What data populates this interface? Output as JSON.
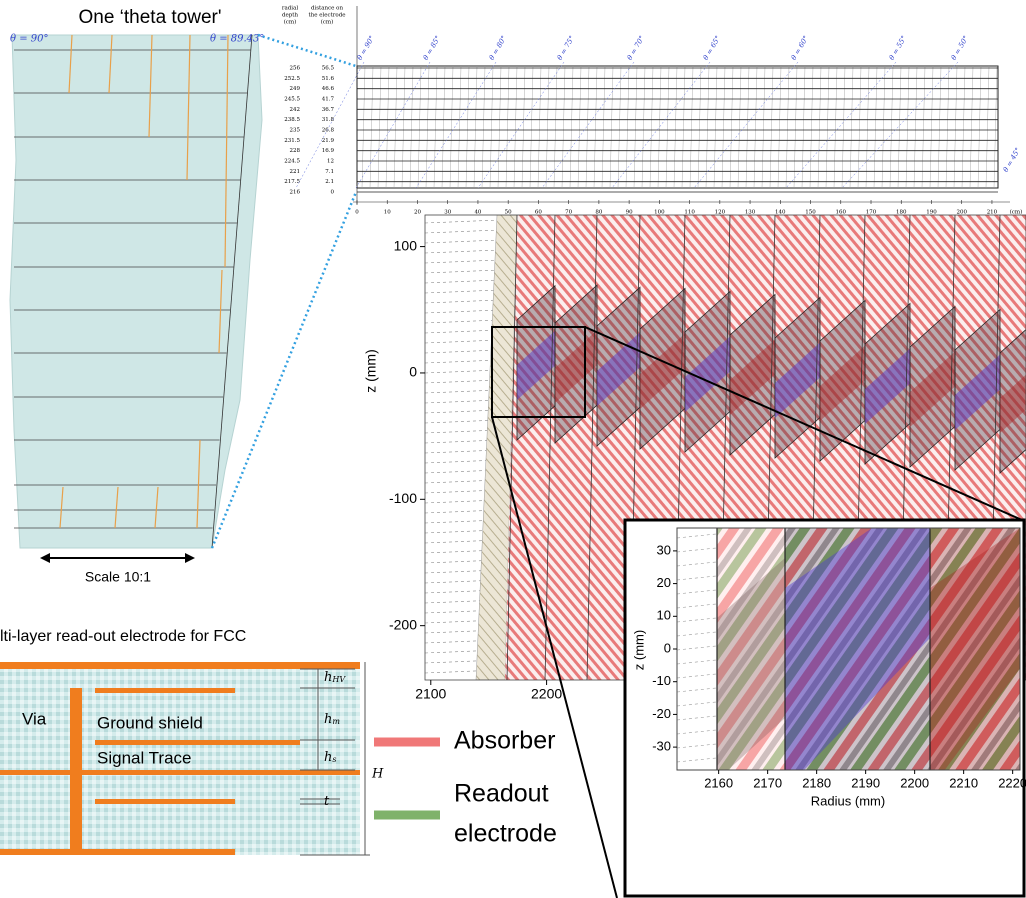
{
  "tower": {
    "title": "One ‘theta tower'",
    "theta_left": "θ = 90°",
    "theta_right": "θ = 89.43°",
    "scale": "Scale 10:1"
  },
  "grid": {
    "header_depth": [
      "radial",
      "depth",
      "(cm)"
    ],
    "header_distance": [
      "distance on",
      "the electrode",
      "(cm)"
    ],
    "depth_labels": [
      256,
      252.5,
      249,
      245.5,
      242,
      238.5,
      235,
      231.5,
      228,
      224.5,
      221,
      217.5,
      216
    ],
    "distance_labels": [
      56.5,
      51.6,
      46.6,
      41.7,
      36.7,
      31.8,
      26.8,
      21.9,
      16.9,
      12,
      7.1,
      2.1,
      0
    ],
    "xticks": [
      0,
      10,
      20,
      30,
      40,
      50,
      60,
      70,
      80,
      90,
      100,
      110,
      120,
      130,
      140,
      150,
      160,
      170,
      180,
      190,
      200,
      210
    ],
    "xlim": [
      0,
      212
    ],
    "x_unit": "(cm)",
    "theta_labels": [
      "θ = 90°",
      "θ = 85°",
      "θ = 80°",
      "θ = 75°",
      "θ = 70°",
      "θ = 65°",
      "θ = 60°",
      "θ = 55°",
      "θ = 50°",
      "θ = 45°"
    ]
  },
  "main_plot": {
    "ylabel": "z (mm)",
    "ylim": [
      -243,
      125
    ],
    "yticks": [
      100,
      0,
      -100,
      -200
    ],
    "xlim": [
      2095,
      2614
    ],
    "xticks": [
      2100,
      2200
    ]
  },
  "inset": {
    "ylabel": "z (mm)",
    "xlabel": "Radius (mm)",
    "ylim": [
      -37,
      37
    ],
    "yticks": [
      30,
      20,
      10,
      0,
      -10,
      -20,
      -30
    ],
    "xlim": [
      2151.5,
      2221.5
    ],
    "xticks": [
      2160,
      2170,
      2180,
      2190,
      2200,
      2210,
      2220
    ]
  },
  "electrode": {
    "title": "lti-layer read-out electrode for FCC",
    "via": "Via",
    "ground": "Ground shield",
    "signal": "Signal Trace",
    "dims": [
      {
        "symbol": "h",
        "sub": "HV"
      },
      {
        "symbol": "h",
        "sub": "m"
      },
      {
        "symbol": "h",
        "sub": "s"
      },
      {
        "symbol": "t",
        "sub": ""
      }
    ],
    "total": "H"
  },
  "legend": [
    {
      "lines": [
        "Absorber"
      ],
      "color": "#f07878"
    },
    {
      "lines": [
        "Readout",
        "electrode"
      ],
      "color": "#7fb26a"
    }
  ]
}
